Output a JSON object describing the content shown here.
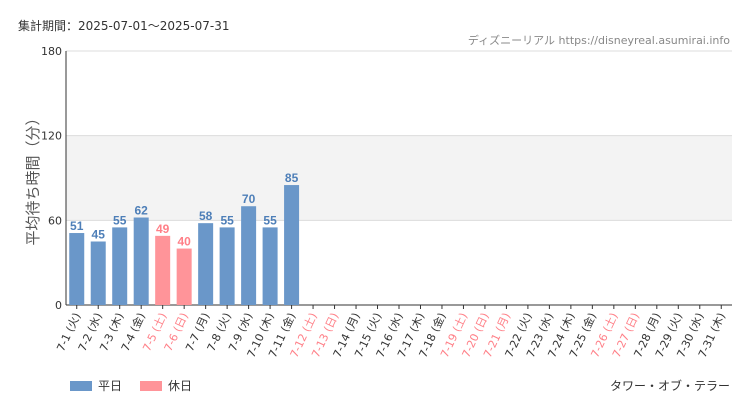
{
  "header": {
    "period": "集計期間：2025-07-01～2025-07-31",
    "source": "ディズニーリアル https://disneyreal.asumirai.info"
  },
  "legend": {
    "weekday_label": "平日",
    "holiday_label": "休日"
  },
  "attraction_name": "タワー・オブ・テラー",
  "colors": {
    "weekday": "#6a97c9",
    "weekday_text": "#4e7fb8",
    "holiday": "#ff9499",
    "holiday_text": "#ff7f87",
    "band": "#f3f3f3",
    "grid": "#dcdcdc"
  },
  "chart_data": {
    "type": "bar",
    "ylabel": "平均待ち時間（分）",
    "ylim": [
      0,
      180
    ],
    "yticks": [
      0,
      60,
      120,
      180
    ],
    "band": [
      60,
      120
    ],
    "categories": [
      "7-1 (火)",
      "7-2 (水)",
      "7-3 (木)",
      "7-4 (金)",
      "7-5 (土)",
      "7-6 (日)",
      "7-7 (月)",
      "7-8 (火)",
      "7-9 (水)",
      "7-10 (木)",
      "7-11 (金)",
      "7-12 (土)",
      "7-13 (日)",
      "7-14 (月)",
      "7-15 (火)",
      "7-16 (水)",
      "7-17 (木)",
      "7-18 (金)",
      "7-19 (土)",
      "7-20 (日)",
      "7-21 (月)",
      "7-22 (火)",
      "7-23 (水)",
      "7-24 (木)",
      "7-25 (金)",
      "7-26 (土)",
      "7-27 (日)",
      "7-28 (月)",
      "7-29 (火)",
      "7-30 (水)",
      "7-31 (木)"
    ],
    "holiday": [
      false,
      false,
      false,
      false,
      true,
      true,
      false,
      false,
      false,
      false,
      false,
      true,
      true,
      false,
      false,
      false,
      false,
      false,
      true,
      true,
      true,
      false,
      false,
      false,
      false,
      true,
      true,
      false,
      false,
      false,
      false
    ],
    "values": [
      51,
      45,
      55,
      62,
      49,
      40,
      58,
      55,
      70,
      55,
      85,
      null,
      null,
      null,
      null,
      null,
      null,
      null,
      null,
      null,
      null,
      null,
      null,
      null,
      null,
      null,
      null,
      null,
      null,
      null,
      null
    ]
  }
}
